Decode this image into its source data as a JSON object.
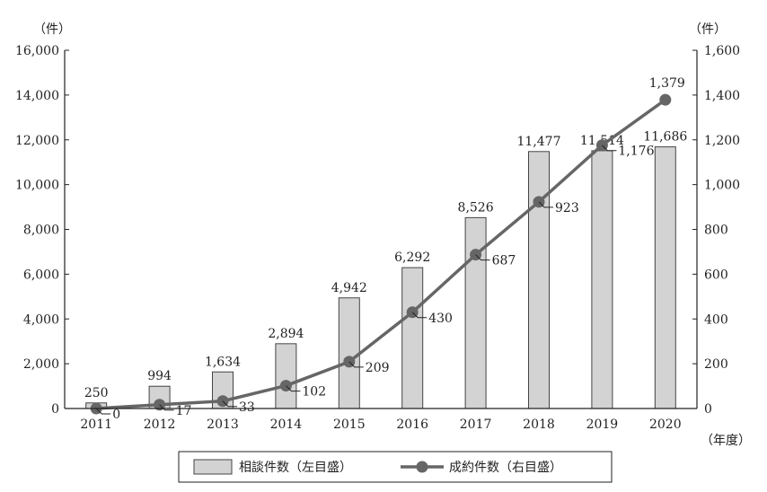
{
  "chart_data": {
    "type": "bar+line",
    "categories": [
      "2011",
      "2012",
      "2013",
      "2014",
      "2015",
      "2016",
      "2017",
      "2018",
      "2019",
      "2020"
    ],
    "series": [
      {
        "name": "相談件数（左目盛）",
        "type": "bar",
        "axis": "left",
        "values": [
          250,
          994,
          1634,
          2894,
          4942,
          6292,
          8526,
          11477,
          11514,
          11686
        ],
        "labels": [
          "250",
          "994",
          "1,634",
          "2,894",
          "4,942",
          "6,292",
          "8,526",
          "11,477",
          "11,514",
          "11,686"
        ],
        "color": "#d3d3d3"
      },
      {
        "name": "成約件数（右目盛）",
        "type": "line",
        "axis": "right",
        "values": [
          0,
          17,
          33,
          102,
          209,
          430,
          687,
          923,
          1176,
          1379
        ],
        "labels": [
          "0",
          "17",
          "33",
          "102",
          "209",
          "430",
          "687",
          "923",
          "1,176",
          "1,379"
        ],
        "color": "#666666"
      }
    ],
    "left_axis": {
      "unit": "（件）",
      "ylim": [
        0,
        16000
      ],
      "ticks": [
        "0",
        "2,000",
        "4,000",
        "6,000",
        "8,000",
        "10,000",
        "12,000",
        "14,000",
        "16,000"
      ]
    },
    "right_axis": {
      "unit": "（件）",
      "ylim": [
        0,
        1600
      ],
      "ticks": [
        "0",
        "200",
        "400",
        "600",
        "800",
        "1,000",
        "1,200",
        "1,400",
        "1,600"
      ]
    },
    "x_unit": "（年度）",
    "legend": "bottom-center",
    "grid": false
  }
}
